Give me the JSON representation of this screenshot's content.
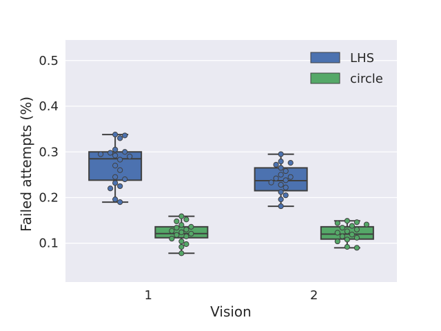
{
  "chart_data": {
    "type": "box",
    "categories": [
      "1",
      "2"
    ],
    "xlabel": "Vision",
    "ylabel": "Failed attempts (%)",
    "ylim": [
      0.015,
      0.545
    ],
    "yticks": [
      0.1,
      0.2,
      0.3,
      0.4,
      0.5
    ],
    "ytick_labels": [
      "0.1",
      "0.2",
      "0.3",
      "0.4",
      "0.5"
    ],
    "legend_position": "top-right",
    "grid": true,
    "series": [
      {
        "name": "LHS",
        "color": "#4c72b0",
        "boxes": [
          {
            "category": "1",
            "whisker_low": 0.19,
            "q1": 0.238,
            "median": 0.285,
            "q3": 0.3,
            "whisker_high": 0.338
          },
          {
            "category": "2",
            "whisker_low": 0.181,
            "q1": 0.215,
            "median": 0.237,
            "q3": 0.265,
            "whisker_high": 0.295
          }
        ],
        "points": [
          [
            0.338,
            0.336,
            0.33,
            0.305,
            0.3,
            0.298,
            0.295,
            0.292,
            0.29,
            0.283,
            0.27,
            0.26,
            0.245,
            0.24,
            0.232,
            0.225,
            0.22,
            0.196,
            0.19
          ],
          [
            0.295,
            0.279,
            0.276,
            0.272,
            0.265,
            0.258,
            0.25,
            0.245,
            0.242,
            0.238,
            0.233,
            0.228,
            0.222,
            0.212,
            0.205,
            0.196,
            0.181
          ]
        ]
      },
      {
        "name": "circle",
        "color": "#55a868",
        "boxes": [
          {
            "category": "1",
            "whisker_low": 0.078,
            "q1": 0.112,
            "median": 0.121,
            "q3": 0.136,
            "whisker_high": 0.159
          },
          {
            "category": "2",
            "whisker_low": 0.09,
            "q1": 0.109,
            "median": 0.12,
            "q3": 0.136,
            "whisker_high": 0.149
          }
        ],
        "points": [
          [
            0.159,
            0.152,
            0.148,
            0.14,
            0.136,
            0.134,
            0.13,
            0.127,
            0.124,
            0.121,
            0.118,
            0.115,
            0.11,
            0.104,
            0.098,
            0.092,
            0.078
          ],
          [
            0.149,
            0.146,
            0.144,
            0.141,
            0.138,
            0.134,
            0.13,
            0.126,
            0.123,
            0.119,
            0.115,
            0.112,
            0.108,
            0.104,
            0.092,
            0.09
          ]
        ]
      }
    ]
  }
}
